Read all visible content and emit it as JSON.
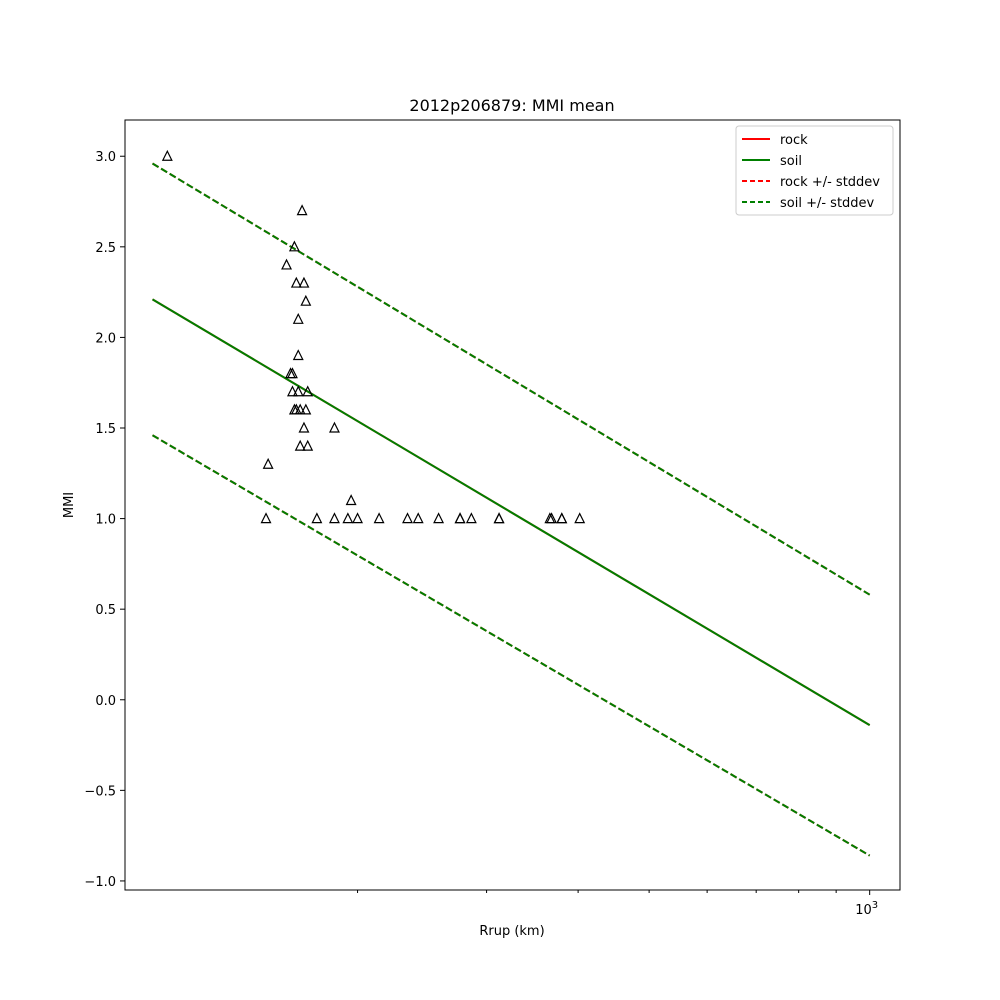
{
  "chart_data": {
    "type": "scatter",
    "title": "2012p206879: MMI mean",
    "xlabel": "Rrup (km)",
    "ylabel": "MMI",
    "xscale": "log",
    "xlim": [
      96.3,
      1100
    ],
    "ylim": [
      -1.05,
      3.2
    ],
    "yticks": [
      -1.0,
      -0.5,
      0.0,
      0.5,
      1.0,
      1.5,
      2.0,
      2.5,
      3.0
    ],
    "ytick_labels": [
      "−1.0",
      "−0.5",
      "0.0",
      "0.5",
      "1.0",
      "1.5",
      "2.0",
      "2.5",
      "3.0"
    ],
    "xtick_label": {
      "base": "10",
      "exponent": "3",
      "value": 1000
    },
    "grid": false,
    "legend_position": "top-right",
    "legend": [
      {
        "label": "rock",
        "color": "#ff0000",
        "style": "solid"
      },
      {
        "label": "soil",
        "color": "#007f00",
        "style": "solid"
      },
      {
        "label": "rock +/- stddev",
        "color": "#ff0000",
        "style": "dashed"
      },
      {
        "label": "soil +/- stddev",
        "color": "#007f00",
        "style": "dashed"
      }
    ],
    "lines": [
      {
        "name": "rock",
        "color": "#ff0000",
        "style": "solid",
        "x": [
          105,
          1000
        ],
        "y": [
          2.21,
          -0.14
        ]
      },
      {
        "name": "soil",
        "color": "#007f00",
        "style": "solid",
        "x": [
          105,
          1000
        ],
        "y": [
          2.21,
          -0.14
        ]
      },
      {
        "name": "rock +/- stddev",
        "color": "#ff0000",
        "style": "dashed",
        "x": [
          105,
          1000
        ],
        "y": [
          2.96,
          0.58
        ]
      },
      {
        "name": "rock +/- stddev",
        "color": "#ff0000",
        "style": "dashed",
        "x": [
          105,
          1000
        ],
        "y": [
          1.46,
          -0.86
        ]
      },
      {
        "name": "soil +/- stddev",
        "color": "#007f00",
        "style": "dashed",
        "x": [
          105,
          1000
        ],
        "y": [
          2.96,
          0.58
        ]
      },
      {
        "name": "soil +/- stddev",
        "color": "#007f00",
        "style": "dashed",
        "x": [
          105,
          1000
        ],
        "y": [
          1.46,
          -0.86
        ]
      }
    ],
    "points": {
      "marker": "triangle",
      "color": "#000000",
      "x": [
        110,
        151,
        160,
        162,
        163,
        163,
        164,
        164,
        165,
        165,
        166,
        166,
        166,
        167,
        167,
        168,
        169,
        169,
        170,
        170,
        171,
        171,
        150,
        176,
        186,
        186,
        194,
        200,
        196,
        214,
        234,
        242,
        258,
        276,
        276,
        286,
        312,
        312,
        366,
        368,
        380,
        380,
        402
      ],
      "y": [
        3.0,
        1.3,
        2.4,
        1.8,
        1.8,
        1.7,
        2.5,
        1.6,
        2.3,
        1.6,
        2.1,
        1.9,
        1.7,
        1.4,
        1.6,
        2.7,
        2.3,
        1.5,
        2.2,
        1.6,
        1.7,
        1.4,
        1.0,
        1.0,
        1.5,
        1.0,
        1.0,
        1.0,
        1.1,
        1.0,
        1.0,
        1.0,
        1.0,
        1.0,
        1.0,
        1.0,
        1.0,
        1.0,
        1.0,
        1.0,
        1.0,
        1.0,
        1.0
      ]
    }
  }
}
